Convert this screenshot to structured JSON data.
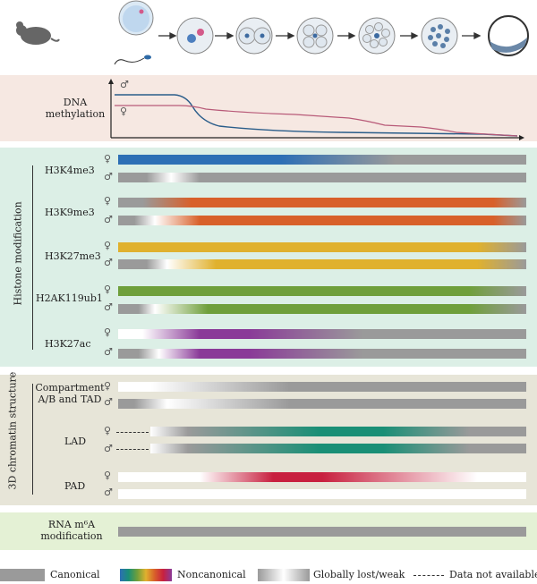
{
  "dna": {
    "label_line1": "DNA",
    "label_line2": "methylation",
    "male": "♂",
    "female": "♀"
  },
  "histone": {
    "section_label": "Histone modification",
    "marks": [
      {
        "name": "H3K4me3"
      },
      {
        "name": "H3K9me3"
      },
      {
        "name": "H3K27me3"
      },
      {
        "name": "H2AK119ub1"
      },
      {
        "name": "H3K27ac"
      }
    ]
  },
  "chromatin": {
    "section_label": "3D chromatin structure",
    "compartment_line1": "Compartment",
    "compartment_line2": "A/B and TAD",
    "lad": "LAD",
    "pad": "PAD"
  },
  "rna": {
    "line1": "RNA m⁶A",
    "line2": "modification"
  },
  "symbols": {
    "female": "♀",
    "male": "♂"
  },
  "legend": {
    "canonical": "Canonical",
    "noncanonical": "Noncanonical",
    "lost": "Globally lost/weak",
    "na": "Data not available"
  },
  "colors": {
    "dna_bg": "#f6e8e2",
    "histone_bg": "#dcefe6",
    "chromatin_bg": "#e7e5d8",
    "rna_bg": "#e4f1d5",
    "canonical_gray": "#9a9a9a",
    "h3k4me3": "#2d6fb5",
    "h3k9me3": "#d8602a",
    "h3k27me3": "#e0b12e",
    "h2ak119ub1": "#6f9f3b",
    "h3k27ac": "#8a3a98",
    "lad": "#1a8f76",
    "pad": "#c8203f",
    "paternal_line": "#2a5d8a",
    "maternal_line": "#b85a78"
  }
}
